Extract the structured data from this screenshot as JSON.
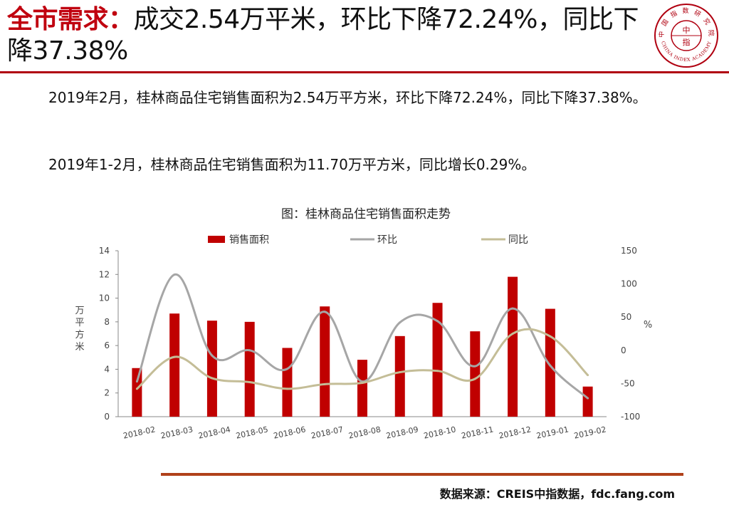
{
  "header": {
    "title_highlight": "全市需求：",
    "title_rest": "成交2.54万平米，环比下降72.24%，同比下降37.38%",
    "logo_top_text": "中 国 指 数 研 究 院",
    "logo_bottom_text": "CHINA INDEX ACADEMY",
    "logo_center_top": "中",
    "logo_center_bottom": "指"
  },
  "body": {
    "paragraph1": "2019年2月，桂林商品住宅销售面积为2.54万平方米，环比下降72.24%，同比下降37.38%。",
    "paragraph2": "2019年1-2月，桂林商品住宅销售面积为11.70万平方米，同比增长0.29%。"
  },
  "footer": {
    "source": "数据来源：CREIS中指数据，fdc.fang.com"
  },
  "chart_data": {
    "type": "bar",
    "title": "图：桂林商品住宅销售面积走势",
    "categories": [
      "2018-02",
      "2018-03",
      "2018-04",
      "2018-05",
      "2018-06",
      "2018-07",
      "2018-08",
      "2018-09",
      "2018-10",
      "2018-11",
      "2018-12",
      "2019-01",
      "2019-02"
    ],
    "ylabel": "万平方米",
    "ylabel2": "%",
    "ylim": [
      0,
      14
    ],
    "ylim2": [
      -100,
      150
    ],
    "yticks": [
      "0",
      "2",
      "4",
      "6",
      "8",
      "10",
      "12",
      "14"
    ],
    "yticks2": [
      "-100",
      "-50",
      "0",
      "50",
      "100",
      "150"
    ],
    "legend_position": "top",
    "series": [
      {
        "name": "销售面积",
        "kind": "bar",
        "axis": "left",
        "color": "#c00000",
        "values": [
          4.1,
          8.7,
          8.1,
          8.0,
          5.8,
          9.3,
          4.8,
          6.8,
          9.6,
          7.2,
          11.8,
          9.1,
          2.54
        ]
      },
      {
        "name": "环比",
        "kind": "line",
        "axis": "right",
        "color": "#a6a6a6",
        "values": [
          -47,
          114,
          -8,
          0,
          -28,
          58,
          -47,
          42,
          44,
          -24,
          63,
          -23,
          -72.24
        ]
      },
      {
        "name": "同比",
        "kind": "line",
        "axis": "right",
        "color": "#c4bd97",
        "values": [
          -58,
          -10,
          -42,
          -48,
          -58,
          -51,
          -49,
          -33,
          -31,
          -43,
          25,
          21,
          -37.38
        ]
      }
    ]
  }
}
